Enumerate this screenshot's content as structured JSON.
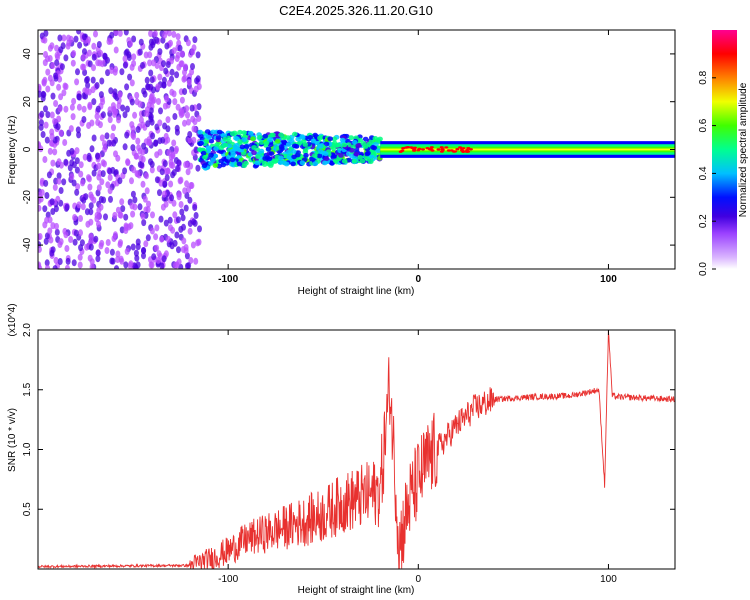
{
  "title": "C2E4.2025.326.11.20.G10",
  "chart_data": [
    {
      "type": "heatmap",
      "name": "spectrogram",
      "xlabel": "Height of straight line (km)",
      "ylabel": "Frequency (Hz)",
      "xlim": [
        -200,
        135
      ],
      "ylim": [
        -50,
        50
      ],
      "x_ticks": [
        -100,
        0,
        100
      ],
      "y_ticks": [
        -40,
        -20,
        0,
        20,
        40
      ],
      "colorbar": {
        "label": "Normalized spectral amplitude",
        "range": [
          0,
          1
        ],
        "ticks": [
          "0.0",
          "0.2",
          "0.4",
          "0.6",
          "0.8"
        ],
        "colors": [
          "#ffffff",
          "#b84dff",
          "#4b00e0",
          "#0000ff",
          "#00c8ff",
          "#00ff80",
          "#40ff00",
          "#ffff00",
          "#ff8000",
          "#ff0000",
          "#ff00a0"
        ]
      },
      "regions": [
        {
          "x_range": [
            -200,
            -115
          ],
          "description_level": "scattered purple noise",
          "amplitude": 0.15
        },
        {
          "x_range": [
            -115,
            -20
          ],
          "center_freq": 0,
          "spread_hz": 8,
          "amplitude": 0.45
        },
        {
          "x_range": [
            -20,
            135
          ],
          "center_freq": 0,
          "spread_hz": 2,
          "amplitude": 0.75
        }
      ]
    },
    {
      "type": "line",
      "name": "snr",
      "xlabel": "Height of straight line (km)",
      "ylabel": "SNR (10 * v/v)",
      "y_multiplier": "(x10^4)",
      "xlim": [
        -200,
        135
      ],
      "ylim": [
        0,
        2.0
      ],
      "x_ticks": [
        -100,
        0,
        100
      ],
      "y_ticks": [
        "0.5",
        "1.0",
        "1.5",
        "2.0"
      ],
      "color": "#e8312f",
      "series": [
        {
          "name": "SNR",
          "x": [
            -200,
            -120,
            -110,
            -100,
            -90,
            -80,
            -70,
            -60,
            -50,
            -40,
            -30,
            -20,
            -15,
            -10,
            -5,
            0,
            5,
            10,
            20,
            30,
            40,
            60,
            80,
            95,
            98,
            100,
            102,
            105,
            120,
            135
          ],
          "y": [
            0.02,
            0.03,
            0.08,
            0.15,
            0.25,
            0.3,
            0.35,
            0.4,
            0.45,
            0.55,
            0.6,
            0.65,
            1.55,
            0.2,
            0.55,
            0.75,
            0.9,
            1.0,
            1.2,
            1.35,
            1.42,
            1.44,
            1.45,
            1.5,
            0.7,
            2.0,
            1.45,
            1.44,
            1.43,
            1.42
          ]
        }
      ]
    }
  ]
}
